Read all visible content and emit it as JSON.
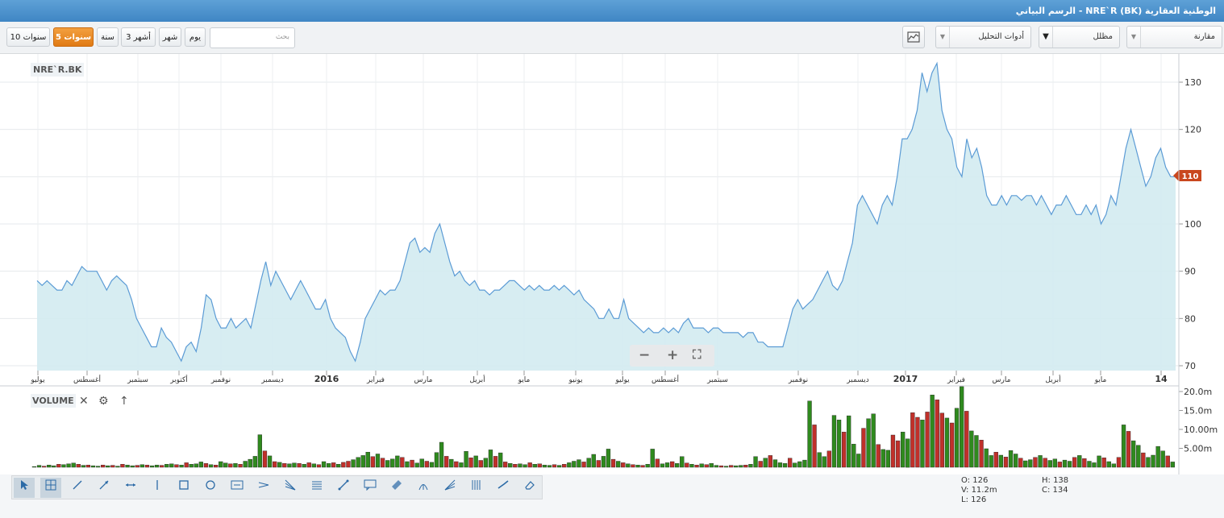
{
  "window": {
    "title": "الوطنية العقارية (NRE`R (BK - الرسم البياني"
  },
  "toolbar": {
    "ranges": [
      "10 سنوات",
      "5 سنوات",
      "سنة",
      "3 أشهر",
      "شهر",
      "يوم"
    ],
    "active_range": "5 سنوات",
    "search_placeholder": "بحث",
    "compare_label": "مقارنة",
    "chart_type_label": "مظلل",
    "analysis_label": "أدوات التحليل",
    "chart_icon": "chart-settings-icon"
  },
  "colors": {
    "line": "#5b9bd5",
    "fill": "#cfe9f0",
    "up": "#2f8a1e",
    "down": "#c0302a",
    "accent": "#e07a14",
    "price_tag": "#c9471e"
  },
  "main_chart": {
    "symbol": "NRE`R.BK",
    "current_price": "110",
    "y_ticks": [
      "130",
      "120",
      "110",
      "100",
      "90",
      "80",
      "70"
    ],
    "x_labels": [
      "يوليو",
      "أغسطس",
      "سبتمبر",
      "أكتوبر",
      "نوفمبر",
      "ديسمبر",
      "2016",
      "فبراير",
      "مارس",
      "أبريل",
      "مايو",
      "يونيو",
      "يوليو",
      "أغسطس",
      "سبتمبر",
      "نوفمبر",
      "ديسمبر",
      "2017",
      "فبراير",
      "مارس",
      "أبريل",
      "مايو",
      "14"
    ],
    "zoom_minus": "−",
    "zoom_plus": "+",
    "zoom_fit": "⛶"
  },
  "volume_chart": {
    "label": "VOLUME",
    "close_icon": "close-icon",
    "gear_icon": "gear-icon",
    "arrow_icon": "arrow-up-icon",
    "y_ticks": [
      "20.0m",
      "15.0m",
      "10.00m",
      "5.00m"
    ]
  },
  "drawing_tools": [
    "cursor-icon",
    "crosshair-icon",
    "line-icon",
    "ray-icon",
    "horizontal-extend-icon",
    "vertical-line-icon",
    "rectangle-icon",
    "ellipse-icon",
    "text-box-icon",
    "channel-icon",
    "fibonacci-fan-icon",
    "fibonacci-retracement-icon",
    "arrow-line-icon",
    "callout-icon",
    "parallel-channel-icon",
    "pitchfork-icon",
    "speed-fan-icon",
    "timeline-icon",
    "trend-angle-icon",
    "eraser-icon"
  ],
  "ohlc": {
    "o": "O: 126",
    "h": "H: 138",
    "v": "V: 11.2m",
    "c": "C: 134",
    "l": "L: 126"
  },
  "chart_data": {
    "type": "area",
    "title": "NRE`R.BK",
    "ylim": [
      70,
      135
    ],
    "x_labels": [
      "يوليو",
      "أغسطس",
      "سبتمبر",
      "أكتوبر",
      "نوفمبر",
      "ديسمبر",
      "2016",
      "فبراير",
      "مارس",
      "أبريل",
      "مايو",
      "يونيو",
      "يوليو",
      "أغسطس",
      "سبتمبر",
      "نوفمبر",
      "ديسمبر",
      "2017",
      "فبراير",
      "مارس",
      "أبريل",
      "مايو",
      "14"
    ],
    "price": [
      88,
      87,
      88,
      87,
      86,
      86,
      88,
      87,
      89,
      91,
      90,
      90,
      90,
      88,
      86,
      88,
      89,
      88,
      87,
      84,
      80,
      78,
      76,
      74,
      74,
      78,
      76,
      75,
      73,
      71,
      74,
      75,
      73,
      78,
      85,
      84,
      80,
      78,
      78,
      80,
      78,
      79,
      80,
      78,
      83,
      88,
      92,
      87,
      90,
      88,
      86,
      84,
      86,
      88,
      86,
      84,
      82,
      82,
      84,
      80,
      78,
      77,
      76,
      73,
      71,
      75,
      80,
      82,
      84,
      86,
      85,
      86,
      86,
      88,
      92,
      96,
      97,
      94,
      95,
      94,
      98,
      100,
      96,
      92,
      89,
      90,
      88,
      87,
      88,
      86,
      86,
      85,
      86,
      86,
      87,
      88,
      88,
      87,
      86,
      87,
      86,
      87,
      86,
      86,
      87,
      86,
      87,
      86,
      85,
      86,
      84,
      83,
      82,
      80,
      80,
      82,
      80,
      80,
      84,
      80,
      79,
      78,
      77,
      78,
      77,
      77,
      78,
      77,
      78,
      77,
      79,
      80,
      78,
      78,
      78,
      77,
      78,
      78,
      77,
      77,
      77,
      77,
      76,
      77,
      77,
      75,
      75,
      74,
      74,
      74,
      74,
      78,
      82,
      84,
      82,
      83,
      84,
      86,
      88,
      90,
      87,
      86,
      88,
      92,
      96,
      104,
      106,
      104,
      102,
      100,
      104,
      106,
      104,
      110,
      118,
      118,
      120,
      124,
      132,
      128,
      132,
      134,
      124,
      120,
      118,
      112,
      110,
      118,
      114,
      116,
      112,
      106,
      104,
      104,
      106,
      104,
      106,
      106,
      105,
      106,
      106,
      104,
      106,
      104,
      102,
      104,
      104,
      106,
      104,
      102,
      102,
      104,
      102,
      104,
      100,
      102,
      106,
      104,
      110,
      116,
      120,
      116,
      112,
      108,
      110,
      114,
      116,
      112,
      110,
      110
    ],
    "volume_m": [
      0.2,
      0.5,
      0.3,
      0.6,
      0.4,
      0.8,
      0.7,
      0.9,
      1.1,
      0.8,
      0.5,
      0.6,
      0.4,
      0.3,
      0.6,
      0.4,
      0.5,
      0.3,
      0.8,
      0.6,
      0.4,
      0.5,
      0.7,
      0.6,
      0.4,
      0.6,
      0.5,
      0.8,
      0.9,
      0.7,
      0.6,
      1.2,
      0.8,
      0.9,
      1.4,
      1.0,
      0.7,
      0.6,
      1.5,
      1.1,
      0.9,
      1.0,
      0.8,
      1.6,
      2.1,
      2.9,
      8.6,
      4.3,
      3.0,
      1.5,
      1.3,
      1.0,
      0.9,
      1.1,
      1.0,
      0.8,
      1.2,
      0.9,
      0.7,
      1.5,
      1.0,
      1.2,
      0.8,
      1.3,
      1.6,
      2.0,
      2.6,
      3.1,
      4.0,
      2.8,
      3.5,
      2.4,
      1.8,
      2.2,
      3.0,
      2.6,
      1.5,
      1.9,
      1.1,
      2.2,
      1.6,
      1.3,
      3.9,
      6.6,
      2.9,
      2.1,
      1.5,
      1.2,
      4.2,
      2.5,
      3.0,
      1.8,
      2.4,
      4.6,
      2.9,
      3.8,
      1.4,
      1.0,
      0.8,
      0.9,
      0.7,
      1.2,
      0.8,
      0.9,
      0.6,
      0.5,
      0.7,
      0.5,
      0.8,
      1.2,
      1.6,
      2.0,
      1.4,
      2.4,
      3.4,
      1.8,
      2.9,
      4.8,
      2.1,
      1.6,
      1.2,
      0.9,
      0.7,
      0.6,
      0.5,
      0.8,
      4.8,
      2.2,
      0.9,
      1.2,
      1.5,
      1.0,
      2.8,
      1.1,
      0.8,
      0.6,
      0.9,
      0.7,
      1.0,
      0.5,
      0.4,
      0.3,
      0.5,
      0.4,
      0.5,
      0.6,
      0.8,
      2.8,
      1.6,
      2.4,
      3.1,
      2.0,
      1.2,
      1.0,
      2.4,
      1.1,
      1.5,
      1.9,
      17.5,
      11.2,
      3.9,
      2.8,
      4.3,
      13.7,
      12.5,
      9.3,
      13.6,
      6.1,
      3.5,
      10.3,
      12.8,
      14.1,
      6.0,
      4.7,
      4.5,
      8.5,
      7.0,
      9.3,
      7.5,
      14.4,
      13.2,
      12.5,
      14.6,
      19.1,
      17.8,
      14.3,
      13.0,
      11.7,
      15.6,
      21.3,
      14.8,
      9.6,
      8.4,
      7.2,
      4.9,
      3.1,
      4.0,
      3.2,
      2.7,
      4.4,
      3.5,
      2.4,
      1.7,
      2.0,
      2.6,
      3.1,
      2.4,
      1.8,
      2.2,
      1.4,
      1.9,
      1.6,
      2.6,
      3.1,
      2.3,
      1.6,
      1.2,
      3.0,
      2.5,
      1.5,
      0.9,
      2.6,
      11.2,
      9.5,
      7.0,
      5.8,
      3.8,
      2.6,
      3.2,
      5.5,
      4.3,
      3.0,
      1.4
    ],
    "volume_up": [
      true,
      true,
      false,
      true,
      true,
      false,
      true,
      true,
      true,
      false,
      true,
      false,
      true,
      true,
      false,
      true,
      false,
      true,
      false,
      true,
      true,
      false,
      true,
      false,
      true,
      true,
      false,
      true,
      true,
      false,
      true,
      false,
      true,
      true,
      true,
      false,
      true,
      false,
      true,
      true,
      false,
      true,
      false,
      true,
      true,
      true,
      true,
      false,
      true,
      false,
      true,
      false,
      true,
      true,
      false,
      true,
      false,
      true,
      false,
      true,
      true,
      false,
      true,
      false,
      false,
      true,
      true,
      true,
      true,
      false,
      true,
      false,
      true,
      true,
      true,
      false,
      true,
      false,
      true,
      true,
      false,
      true,
      true,
      true,
      false,
      true,
      false,
      true,
      true,
      false,
      true,
      false,
      true,
      true,
      false,
      true,
      false,
      true,
      false,
      true,
      true,
      false,
      true,
      false,
      true,
      true,
      false,
      true,
      false,
      true,
      true,
      true,
      false,
      true,
      true,
      false,
      true,
      true,
      false,
      true,
      false,
      true,
      false,
      true,
      false,
      true,
      true,
      false,
      true,
      true,
      false,
      true,
      true,
      false,
      true,
      false,
      true,
      false,
      true,
      true,
      false,
      true,
      false,
      true,
      true,
      false,
      true,
      true,
      false,
      true,
      false,
      true,
      true,
      true,
      false,
      true,
      true,
      true,
      true,
      false,
      true,
      true,
      false,
      true,
      true,
      false,
      true,
      true,
      true,
      false,
      true,
      true,
      false,
      true,
      true,
      false,
      false,
      true,
      true,
      false,
      false,
      true,
      false,
      true,
      false,
      false,
      true,
      false,
      true,
      true,
      false,
      true,
      true,
      false,
      true,
      true,
      false,
      true,
      false,
      true,
      true,
      false,
      true,
      true,
      false,
      true,
      false,
      true,
      true,
      false,
      true,
      true,
      false,
      true,
      false,
      true,
      true,
      true,
      false,
      true,
      true,
      false,
      true,
      false,
      true,
      true,
      false,
      true,
      true
    ]
  }
}
